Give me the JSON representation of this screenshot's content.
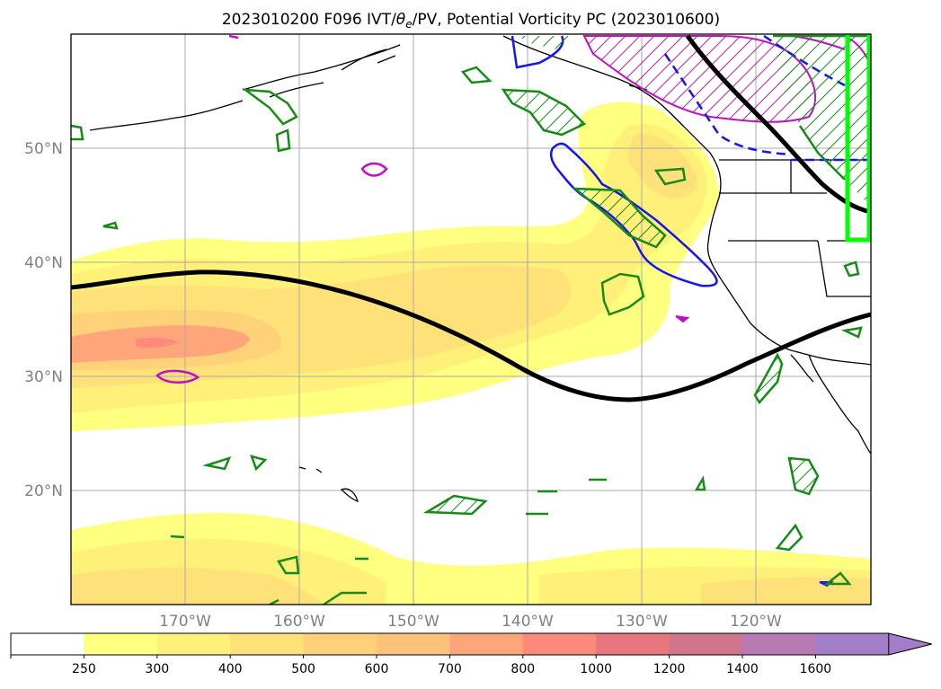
{
  "figure": {
    "title": "2023010200 F096 IVT/θe/PV, Potential Vorticity PC (2023010600)",
    "title_parts": {
      "pre": "2023010200 F096 IVT/",
      "theta": "θ",
      "sub": "e",
      "post": "/PV, Potential Vorticity PC (2023010600)"
    }
  },
  "map": {
    "lat_labels": [
      "50°N",
      "40°N",
      "30°N",
      "20°N"
    ],
    "lon_labels": [
      "170°W",
      "160°W",
      "150°W",
      "140°W",
      "130°W",
      "120°W"
    ],
    "lat_range": [
      10,
      60
    ],
    "lon_range": [
      -180,
      -110
    ]
  },
  "colorbar": {
    "ticks": [
      "250",
      "300",
      "400",
      "500",
      "600",
      "700",
      "800",
      "1000",
      "1200",
      "1400",
      "1600"
    ],
    "colors": [
      "#ffffff",
      "#ffff80",
      "#fff07a",
      "#ffe17a",
      "#ffd27a",
      "#ffc27a",
      "#ffa57a",
      "#fb8a7a",
      "#e8767f",
      "#d0768c",
      "#b97ab4",
      "#a27ec8"
    ],
    "extend": "max"
  },
  "legend_colors": {
    "pv_green": "#178a17",
    "theta_blue": "#1515f0",
    "magenta": "#c010c0",
    "jet_black": "#000000",
    "box_lime": "#00ff00"
  }
}
